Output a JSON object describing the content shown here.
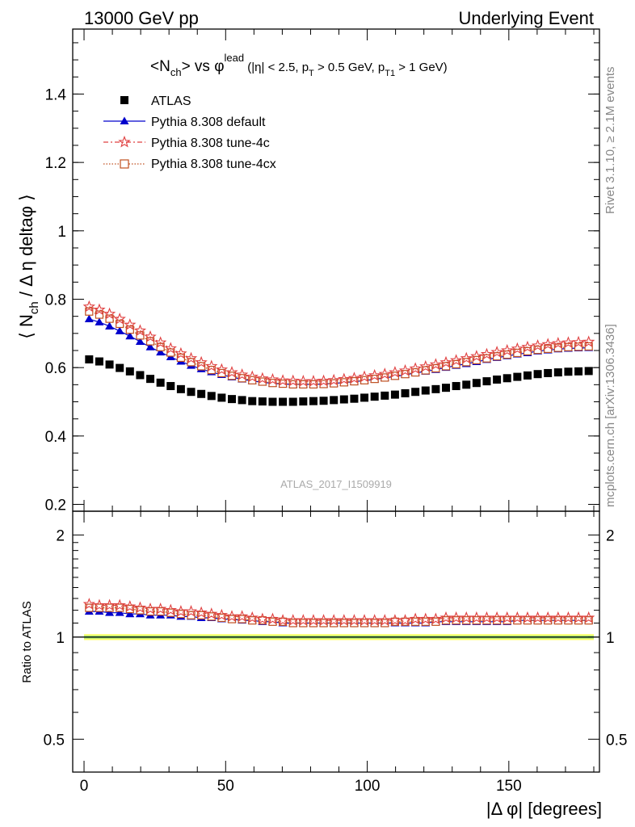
{
  "header": {
    "left": "13000 GeV pp",
    "right": "Underlying Event"
  },
  "side_labels": {
    "rivet": "Rivet 3.1.10, ≥ 2.1M events",
    "mcplots": "mcplots.cern.ch [arXiv:1306.3436]"
  },
  "colors": {
    "atlas": "#000000",
    "default": "#0000cc",
    "tune4c": "#e04040",
    "tune4cx": "#c05020",
    "band_yellow": "#ffff66",
    "band_green": "#99e07a"
  },
  "chart_data": [
    {
      "type": "scatter",
      "name": "main",
      "title_parts": {
        "lhs_main": "<N",
        "lhs_sub": "ch",
        "lhs_close": "> vs ",
        "phi": "φ",
        "lead": "lead",
        "cut_a": " (|η| < 2.5, p",
        "cut_a_sub": "T",
        "cut_b": " > 0.5 GeV, p",
        "cut_b_sub": "T1",
        "cut_c": " > 1 GeV)"
      },
      "ylabel": "⟨ N_ch / Δ η deltaφ ⟩",
      "ylabel_parts": {
        "open": "⟨ N",
        "sub": "ch",
        "rest": " / Δ η deltaφ ⟩"
      },
      "watermark": "ATLAS_2017_I1509919",
      "xlim": [
        -4,
        182
      ],
      "ylim": [
        0.18,
        1.59
      ],
      "yticks": [
        0.2,
        0.4,
        0.6,
        0.8,
        1,
        1.2,
        1.4
      ],
      "ytick_labels": [
        "0.2",
        "0.4",
        "0.6",
        "0.8",
        "1",
        "1.2",
        "1.4"
      ],
      "legend_position": "top-left",
      "x": [
        1.8,
        5.4,
        9.0,
        12.6,
        16.2,
        19.8,
        23.4,
        27.0,
        30.6,
        34.2,
        37.8,
        41.4,
        45.0,
        48.6,
        52.2,
        55.8,
        59.4,
        63.0,
        66.6,
        70.2,
        73.8,
        77.4,
        81.0,
        84.6,
        88.2,
        91.8,
        95.4,
        99.0,
        102.6,
        106.2,
        109.8,
        113.4,
        117.0,
        120.6,
        124.2,
        127.8,
        131.4,
        135.0,
        138.6,
        142.2,
        145.8,
        149.4,
        153.0,
        156.6,
        160.2,
        163.8,
        167.4,
        171.0,
        174.6,
        178.2
      ],
      "series": [
        {
          "name": "ATLAS",
          "marker": "square",
          "values": [
            0.624,
            0.618,
            0.609,
            0.599,
            0.589,
            0.578,
            0.567,
            0.556,
            0.546,
            0.537,
            0.529,
            0.523,
            0.517,
            0.512,
            0.508,
            0.505,
            0.502,
            0.501,
            0.5,
            0.5,
            0.5,
            0.501,
            0.502,
            0.503,
            0.505,
            0.507,
            0.509,
            0.512,
            0.515,
            0.518,
            0.521,
            0.525,
            0.529,
            0.533,
            0.537,
            0.541,
            0.546,
            0.55,
            0.555,
            0.56,
            0.565,
            0.569,
            0.573,
            0.577,
            0.581,
            0.584,
            0.586,
            0.588,
            0.589,
            0.59
          ]
        },
        {
          "name": "Pythia 8.308 default",
          "marker": "triangle",
          "values": [
            0.742,
            0.733,
            0.721,
            0.707,
            0.692,
            0.676,
            0.66,
            0.645,
            0.631,
            0.618,
            0.606,
            0.596,
            0.587,
            0.579,
            0.572,
            0.566,
            0.561,
            0.557,
            0.554,
            0.552,
            0.551,
            0.551,
            0.551,
            0.552,
            0.554,
            0.556,
            0.559,
            0.562,
            0.566,
            0.57,
            0.574,
            0.579,
            0.584,
            0.589,
            0.594,
            0.6,
            0.606,
            0.611,
            0.617,
            0.623,
            0.629,
            0.634,
            0.639,
            0.643,
            0.648,
            0.651,
            0.654,
            0.656,
            0.657,
            0.658
          ]
        },
        {
          "name": "Pythia 8.308 tune-4c",
          "marker": "star",
          "values": [
            0.778,
            0.769,
            0.757,
            0.742,
            0.725,
            0.708,
            0.69,
            0.673,
            0.656,
            0.641,
            0.627,
            0.615,
            0.604,
            0.594,
            0.586,
            0.579,
            0.573,
            0.568,
            0.565,
            0.562,
            0.561,
            0.56,
            0.56,
            0.561,
            0.563,
            0.566,
            0.569,
            0.573,
            0.577,
            0.581,
            0.586,
            0.591,
            0.597,
            0.603,
            0.609,
            0.615,
            0.621,
            0.627,
            0.633,
            0.639,
            0.645,
            0.65,
            0.655,
            0.66,
            0.664,
            0.668,
            0.671,
            0.673,
            0.674,
            0.675
          ]
        },
        {
          "name": "Pythia 8.308 tune-4cx",
          "marker": "open-square",
          "values": [
            0.764,
            0.755,
            0.743,
            0.728,
            0.711,
            0.694,
            0.677,
            0.66,
            0.644,
            0.629,
            0.616,
            0.604,
            0.593,
            0.584,
            0.576,
            0.569,
            0.563,
            0.559,
            0.555,
            0.553,
            0.551,
            0.551,
            0.551,
            0.552,
            0.554,
            0.557,
            0.56,
            0.563,
            0.567,
            0.571,
            0.576,
            0.581,
            0.586,
            0.592,
            0.598,
            0.604,
            0.61,
            0.616,
            0.622,
            0.627,
            0.633,
            0.638,
            0.643,
            0.648,
            0.652,
            0.655,
            0.658,
            0.66,
            0.661,
            0.662
          ]
        }
      ]
    },
    {
      "type": "scatter",
      "name": "ratio",
      "ylabel": "Ratio to ATLAS",
      "xlabel": "|Δ φ| [degrees]",
      "xlim": [
        -4,
        182
      ],
      "ylim": [
        0.4,
        2.35
      ],
      "log_y": true,
      "xticks": [
        0,
        50,
        100,
        150
      ],
      "xtick_labels": [
        "0",
        "50",
        "100",
        "150"
      ],
      "yticks": [
        0.5,
        1,
        2
      ],
      "ytick_labels": [
        "0.5",
        "1",
        "2"
      ],
      "reference_band": {
        "yellow": [
          0.98,
          1.02
        ],
        "green": [
          0.99,
          1.01
        ]
      },
      "series": [
        {
          "name": "Pythia 8.308 default",
          "values": [
            1.19,
            1.19,
            1.18,
            1.18,
            1.17,
            1.17,
            1.16,
            1.16,
            1.16,
            1.15,
            1.15,
            1.14,
            1.14,
            1.13,
            1.13,
            1.12,
            1.12,
            1.11,
            1.11,
            1.1,
            1.1,
            1.1,
            1.1,
            1.1,
            1.1,
            1.1,
            1.1,
            1.1,
            1.1,
            1.1,
            1.1,
            1.1,
            1.1,
            1.1,
            1.11,
            1.11,
            1.11,
            1.11,
            1.11,
            1.11,
            1.11,
            1.11,
            1.12,
            1.12,
            1.12,
            1.12,
            1.12,
            1.12,
            1.12,
            1.12
          ]
        },
        {
          "name": "Pythia 8.308 tune-4c",
          "values": [
            1.25,
            1.24,
            1.24,
            1.24,
            1.23,
            1.22,
            1.21,
            1.21,
            1.2,
            1.19,
            1.19,
            1.18,
            1.17,
            1.16,
            1.15,
            1.15,
            1.14,
            1.13,
            1.13,
            1.12,
            1.12,
            1.12,
            1.12,
            1.12,
            1.12,
            1.12,
            1.12,
            1.12,
            1.12,
            1.12,
            1.12,
            1.12,
            1.13,
            1.13,
            1.13,
            1.14,
            1.14,
            1.14,
            1.14,
            1.14,
            1.14,
            1.14,
            1.14,
            1.14,
            1.14,
            1.14,
            1.14,
            1.14,
            1.14,
            1.14
          ]
        },
        {
          "name": "Pythia 8.308 tune-4cx",
          "values": [
            1.22,
            1.22,
            1.22,
            1.22,
            1.21,
            1.2,
            1.19,
            1.19,
            1.18,
            1.17,
            1.16,
            1.16,
            1.15,
            1.14,
            1.13,
            1.13,
            1.12,
            1.12,
            1.11,
            1.11,
            1.1,
            1.1,
            1.1,
            1.1,
            1.1,
            1.1,
            1.1,
            1.1,
            1.1,
            1.1,
            1.11,
            1.11,
            1.11,
            1.11,
            1.11,
            1.12,
            1.12,
            1.12,
            1.12,
            1.12,
            1.12,
            1.12,
            1.12,
            1.12,
            1.12,
            1.12,
            1.12,
            1.12,
            1.12,
            1.12
          ]
        }
      ]
    }
  ]
}
